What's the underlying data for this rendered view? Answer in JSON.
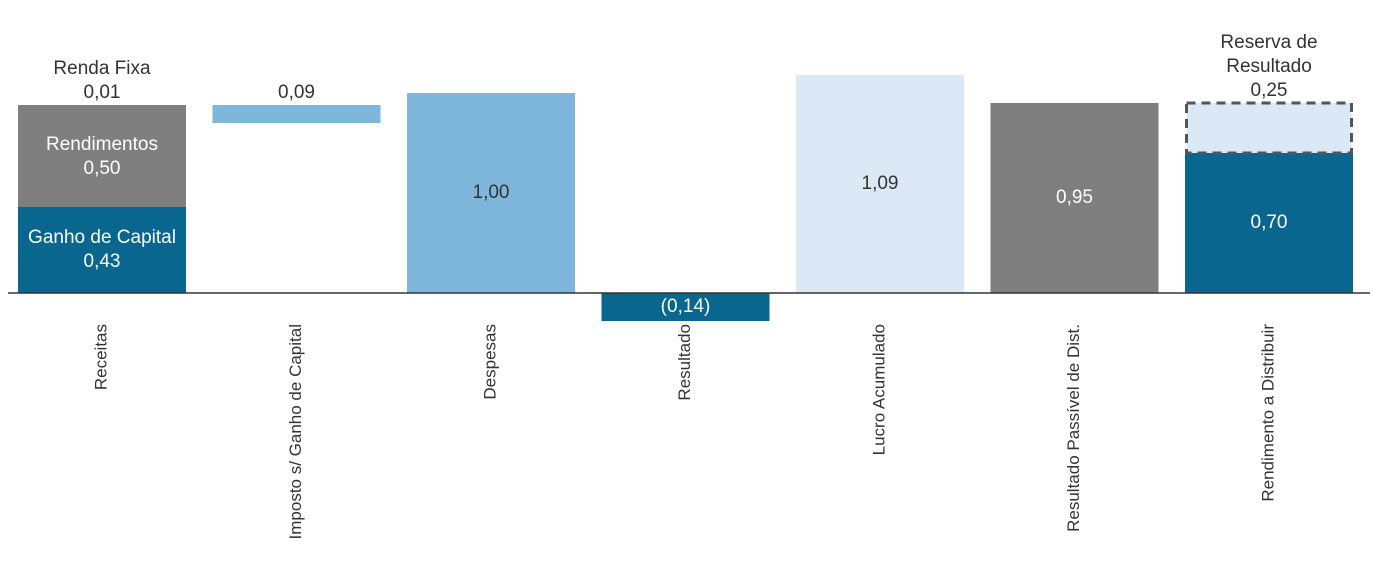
{
  "chart_data": {
    "type": "bar",
    "subtype": "waterfall",
    "title": "",
    "xlabel": "",
    "ylabel": "",
    "ylim": [
      -0.14,
      1.09
    ],
    "grid": false,
    "legend": "none",
    "categories": [
      "Receitas",
      "Imposto s/ Ganho de Capital",
      "Despesas",
      "Resultado",
      "Lucro Acumulado",
      "Resultado Passível de Dist.",
      "Rendimento a Distribuir"
    ],
    "colors": {
      "dark_blue": "#08668f",
      "gray": "#7f7f7f",
      "medium_blue": "#7fb6db",
      "light_blue": "#dbe8f5",
      "axis": "#333333",
      "dashed_border": "#555555",
      "text_dark": "#333333",
      "text_light": "#ffffff"
    },
    "bars": [
      {
        "category_index": 0,
        "segments": [
          {
            "label": "Ganho de Capital",
            "value_label": "0,43",
            "start": 0,
            "end": 0.43,
            "color": "dark_blue",
            "text_color": "text_light",
            "text_position": "inside"
          },
          {
            "label": "Rendimentos",
            "value_label": "0,50",
            "start": 0.43,
            "end": 0.93,
            "color": "gray",
            "text_color": "text_light",
            "text_position": "inside"
          },
          {
            "label": "Renda Fixa",
            "value_label": "0,01",
            "start": 0.93,
            "end": 0.94,
            "color": "gray",
            "text_color": "text_dark",
            "text_position": "above"
          }
        ]
      },
      {
        "category_index": 1,
        "segments": [
          {
            "label": "",
            "value_label": "0,09",
            "start": 0.85,
            "end": 0.94,
            "color": "medium_blue",
            "text_color": "text_dark",
            "text_position": "above"
          }
        ]
      },
      {
        "category_index": 2,
        "segments": [
          {
            "label": "",
            "value_label": "1,00",
            "start": 0,
            "end": 1.0,
            "color": "medium_blue",
            "text_color": "text_dark",
            "text_position": "inside"
          }
        ]
      },
      {
        "category_index": 3,
        "segments": [
          {
            "label": "",
            "value_label": "(0,14)",
            "start": -0.14,
            "end": 0,
            "color": "dark_blue",
            "text_color": "text_light",
            "text_position": "inside"
          }
        ]
      },
      {
        "category_index": 4,
        "segments": [
          {
            "label": "",
            "value_label": "1,09",
            "start": 0,
            "end": 1.09,
            "color": "light_blue",
            "text_color": "text_dark",
            "text_position": "inside"
          }
        ]
      },
      {
        "category_index": 5,
        "segments": [
          {
            "label": "",
            "value_label": "0,95",
            "start": 0,
            "end": 0.95,
            "color": "gray",
            "text_color": "text_light",
            "text_position": "inside"
          }
        ]
      },
      {
        "category_index": 6,
        "segments": [
          {
            "label": "",
            "value_label": "0,70",
            "start": 0,
            "end": 0.7,
            "color": "dark_blue",
            "text_color": "text_light",
            "text_position": "inside"
          },
          {
            "label": "Reserva de Resultado",
            "value_label": "0,25",
            "start": 0.7,
            "end": 0.95,
            "color": "light_blue",
            "text_color": "text_dark",
            "text_position": "above",
            "dashed": true
          }
        ]
      }
    ]
  }
}
